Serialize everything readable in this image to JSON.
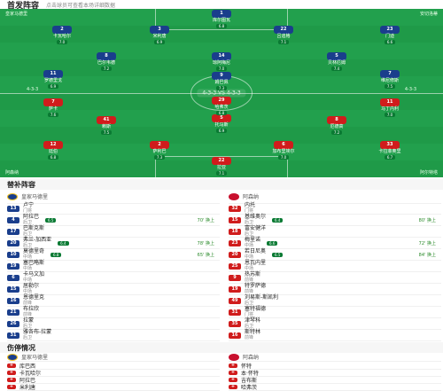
{
  "header": {
    "title": "首发阵容",
    "subtitle": "点击球员可查看本场详细数据"
  },
  "pitch": {
    "home_label": "皇家马德里",
    "away_label": "阿森纳",
    "formation_center": "4-3-3  VS  4-3-3",
    "home_info": "4-3-3",
    "away_info": "4-3-3",
    "home_coach": "安切洛蒂",
    "away_coach": "阿尔特塔",
    "home_players": [
      {
        "num": "1",
        "name": "库尔图瓦",
        "rating": "6.8"
      },
      {
        "num": "2",
        "name": "卡瓦哈尔",
        "rating": "7.0"
      },
      {
        "num": "3",
        "name": "米利唐",
        "rating": "6.9"
      },
      {
        "num": "22",
        "name": "吕迪格",
        "rating": "7.1"
      },
      {
        "num": "23",
        "name": "门迪",
        "rating": "6.6"
      },
      {
        "num": "8",
        "name": "巴尔韦德",
        "rating": "7.2"
      },
      {
        "num": "14",
        "name": "琼阿梅尼",
        "rating": "7.0"
      },
      {
        "num": "5",
        "name": "贝林厄姆",
        "rating": "7.4"
      },
      {
        "num": "11",
        "name": "罗德里戈",
        "rating": "6.9"
      },
      {
        "num": "9",
        "name": "姆巴佩",
        "rating": "7.3"
      },
      {
        "num": "7",
        "name": "维尼修斯",
        "rating": "7.5"
      }
    ],
    "away_players": [
      {
        "num": "22",
        "name": "拉亚",
        "rating": "7.1"
      },
      {
        "num": "12",
        "name": "廷伯",
        "rating": "6.8"
      },
      {
        "num": "2",
        "name": "萨利巴",
        "rating": "7.3"
      },
      {
        "num": "6",
        "name": "加布里埃尔",
        "rating": "7.0"
      },
      {
        "num": "33",
        "name": "卡拉菲奥里",
        "rating": "6.7"
      },
      {
        "num": "41",
        "name": "赖斯",
        "rating": "7.5"
      },
      {
        "num": "5",
        "name": "托马斯",
        "rating": "6.9"
      },
      {
        "num": "8",
        "name": "厄德高",
        "rating": "7.2"
      },
      {
        "num": "7",
        "name": "萨卡",
        "rating": "7.6"
      },
      {
        "num": "29",
        "name": "哈弗茨",
        "rating": "6.8"
      },
      {
        "num": "11",
        "name": "马丁内利",
        "rating": "7.0"
      }
    ]
  },
  "subs": {
    "title": "替补阵容",
    "home_team": "皇家马德里",
    "away_team": "阿森纳",
    "home": [
      {
        "num": "13",
        "name": "卢宁",
        "pos": "门将"
      },
      {
        "num": "4",
        "name": "阿拉巴",
        "pos": "后卫",
        "rating": "6.5",
        "sub": "70' 换上"
      },
      {
        "num": "17",
        "name": "巴斯克斯",
        "pos": "后卫"
      },
      {
        "num": "20",
        "name": "弗兰-加西亚",
        "pos": "后卫",
        "rating": "6.4",
        "sub": "78' 换上"
      },
      {
        "num": "10",
        "name": "莫德里奇",
        "pos": "中场",
        "rating": "6.8",
        "sub": "65' 换上"
      },
      {
        "num": "19",
        "name": "塞巴略斯",
        "pos": "中场"
      },
      {
        "num": "6",
        "name": "卡马文加",
        "pos": "中场"
      },
      {
        "num": "15",
        "name": "居勒尔",
        "pos": "中场"
      },
      {
        "num": "16",
        "name": "恩德里克",
        "pos": "前锋"
      },
      {
        "num": "21",
        "name": "布拉欣",
        "pos": "前锋"
      },
      {
        "num": "26",
        "name": "拉蒙",
        "pos": "后卫"
      },
      {
        "num": "31",
        "name": "雅各布-拉蒙",
        "pos": "后卫"
      }
    ],
    "away": [
      {
        "num": "32",
        "name": "内托",
        "pos": "门将"
      },
      {
        "num": "15",
        "name": "基维奥尔",
        "pos": "后卫",
        "rating": "6.4",
        "sub": "80' 换上"
      },
      {
        "num": "18",
        "name": "富安健洋",
        "pos": "后卫"
      },
      {
        "num": "23",
        "name": "梅里诺",
        "pos": "中场",
        "rating": "6.6",
        "sub": "72' 换上"
      },
      {
        "num": "20",
        "name": "若日尼奥",
        "pos": "中场",
        "rating": "6.5",
        "sub": "84' 换上"
      },
      {
        "num": "25",
        "name": "恩瓦内里",
        "pos": "中场"
      },
      {
        "num": "9",
        "name": "热苏斯",
        "pos": "前锋"
      },
      {
        "num": "19",
        "name": "特罗萨德",
        "pos": "前锋"
      },
      {
        "num": "49",
        "name": "刘易斯-斯凯利",
        "pos": "后卫"
      },
      {
        "num": "31",
        "name": "塞特福德",
        "pos": "门将"
      },
      {
        "num": "35",
        "name": "津琴科",
        "pos": "后卫"
      },
      {
        "num": "16",
        "name": "斯特林",
        "pos": "前锋"
      }
    ]
  },
  "injuries": {
    "title": "伤停情况",
    "home_team": "皇家马德里",
    "away_team": "阿森纳",
    "home": [
      "库巴西",
      "卡瓦哈尔",
      "阿拉巴",
      "米利唐"
    ],
    "away": [
      "怀特",
      "本·怀特",
      "吉布斯",
      "哈弗茨"
    ]
  }
}
